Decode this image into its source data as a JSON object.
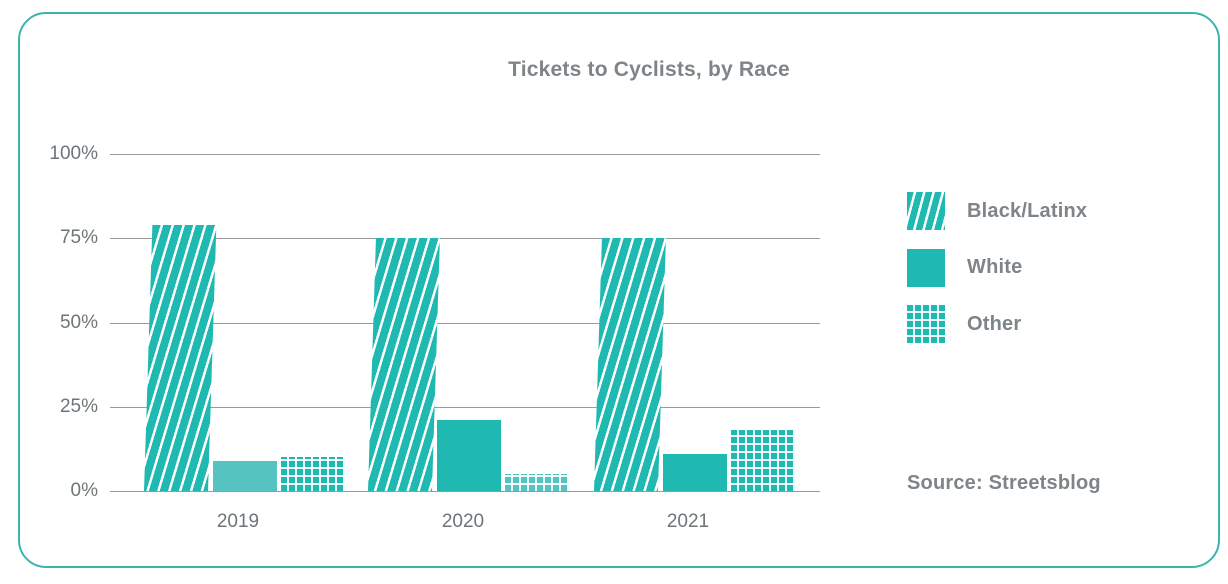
{
  "chart_data": {
    "type": "bar",
    "title": "Tickets to Cyclists, by Race",
    "categories": [
      "2019",
      "2020",
      "2021"
    ],
    "series": [
      {
        "name": "Black/Latinx",
        "pattern": "diagonal-stripes",
        "values": [
          79,
          75,
          75
        ]
      },
      {
        "name": "White",
        "pattern": "solid",
        "values": [
          9,
          21,
          11
        ]
      },
      {
        "name": "Other",
        "pattern": "grid",
        "values": [
          10,
          5,
          18
        ]
      }
    ],
    "y_ticks": [
      "100%",
      "75%",
      "50%",
      "25%",
      "0%"
    ],
    "ylim": [
      0,
      100
    ],
    "grid": true,
    "legend_position": "right",
    "light_bars": [
      {
        "series": "White",
        "category": "2019"
      },
      {
        "series": "Other",
        "category": "2020"
      }
    ]
  },
  "source": {
    "label": "Source: Streetsblog"
  },
  "colors": {
    "teal": "#1FB9B2",
    "teal_light": "#55C3BF",
    "card_border": "#3CB4AE",
    "gridline": "#9A9A9A",
    "axis_text": "#6E7578",
    "heading_text": "#7E8487"
  }
}
